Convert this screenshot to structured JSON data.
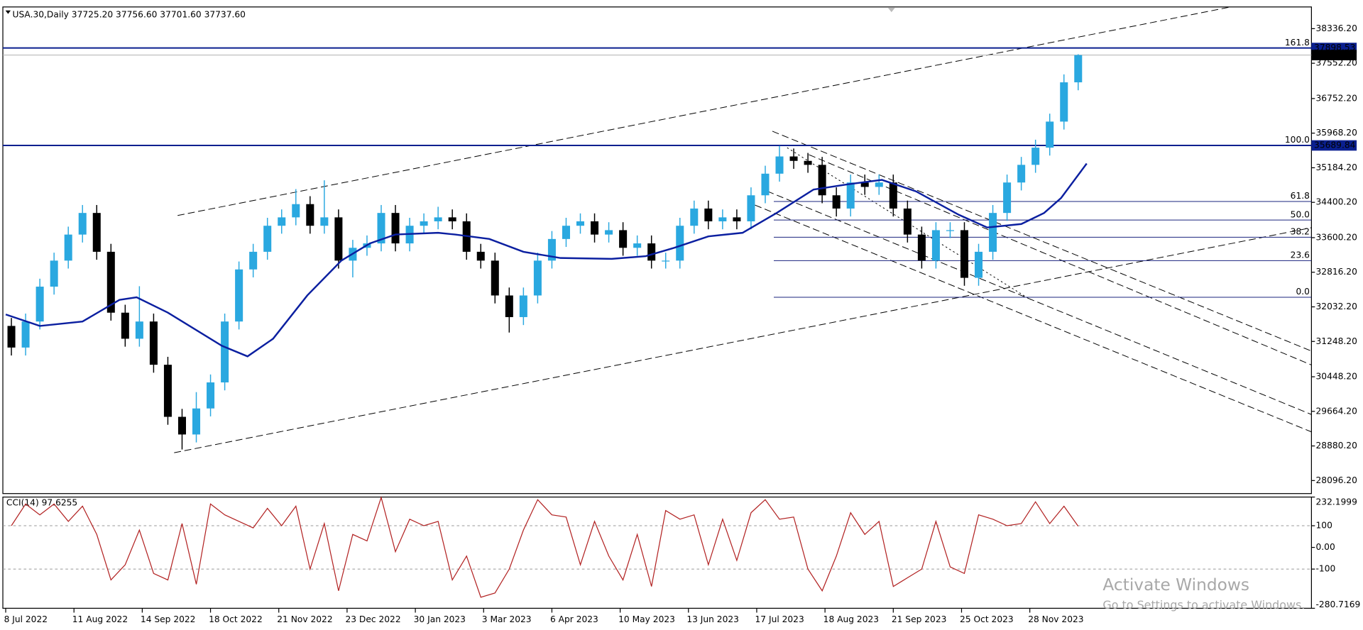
{
  "chart_data": [
    {
      "type": "candlestick",
      "title": "USA.30,Daily 37725.20 37756.60 37701.60 37737.60",
      "up_color": "#2aa8e0",
      "down_color": "#000000",
      "x": [
        2,
        7,
        12,
        17,
        22,
        27,
        32,
        37,
        42,
        47,
        52,
        57,
        62,
        67,
        72,
        77,
        82,
        87,
        92,
        97,
        102,
        107,
        112,
        117,
        122,
        127,
        132,
        137,
        142,
        147,
        152,
        157,
        162,
        167,
        172,
        177,
        182,
        187,
        192,
        197,
        202,
        207,
        212,
        217,
        222,
        227,
        232,
        237,
        242,
        247,
        252,
        257,
        262,
        267,
        272,
        277,
        282,
        287,
        292,
        297,
        302,
        307,
        312,
        317,
        322,
        327,
        332,
        337,
        342,
        347,
        352,
        357,
        362,
        367,
        372,
        377
      ],
      "open": [
        31600,
        31110,
        31700,
        32490,
        33080,
        33670,
        34160,
        33280,
        31900,
        31310,
        31700,
        30720,
        29540,
        29140,
        29730,
        30320,
        31700,
        32880,
        33280,
        33870,
        34060,
        34360,
        33870,
        34060,
        33080,
        33370,
        33470,
        34160,
        33470,
        33870,
        33970,
        34060,
        33970,
        33280,
        33080,
        32290,
        31800,
        32290,
        33080,
        33570,
        33870,
        33970,
        33670,
        33770,
        33370,
        33470,
        33080,
        33080,
        33870,
        34260,
        33970,
        34060,
        33970,
        34560,
        35050,
        35440,
        35340,
        35250,
        34560,
        34260,
        34850,
        34750,
        34850,
        34260,
        33670,
        33080,
        33770,
        33770,
        32690,
        33280,
        34160,
        34850,
        35250,
        35640,
        36230,
        37120
      ],
      "high": [
        31780,
        31880,
        32670,
        33260,
        33850,
        34340,
        34340,
        33460,
        32080,
        32500,
        31880,
        30900,
        29720,
        30100,
        30500,
        31880,
        33060,
        33460,
        34050,
        34240,
        34700,
        34540,
        34900,
        34240,
        33550,
        33650,
        34340,
        34340,
        34050,
        34150,
        34300,
        34240,
        34150,
        33460,
        33260,
        32470,
        32470,
        33260,
        33750,
        34050,
        34150,
        34150,
        33950,
        33950,
        33650,
        33650,
        33260,
        34050,
        34440,
        34440,
        34240,
        34240,
        34740,
        35230,
        35680,
        35620,
        35520,
        35430,
        34740,
        35030,
        35030,
        35030,
        35030,
        34440,
        33850,
        33950,
        33950,
        33950,
        33460,
        34340,
        35030,
        35430,
        35820,
        36410,
        37300,
        37756.6
      ],
      "low": [
        30930,
        30930,
        31520,
        32310,
        32900,
        33490,
        33100,
        31720,
        31130,
        31130,
        30540,
        29360,
        28800,
        28960,
        29550,
        30140,
        31520,
        32700,
        33100,
        33690,
        33880,
        33690,
        33690,
        32900,
        32700,
        33190,
        33290,
        33290,
        33290,
        33690,
        33790,
        33790,
        33100,
        32900,
        32110,
        31450,
        31620,
        32110,
        32900,
        33390,
        33690,
        33490,
        33490,
        33190,
        33190,
        32900,
        32900,
        32900,
        33690,
        33790,
        33790,
        33790,
        33790,
        34380,
        34870,
        35160,
        35070,
        34380,
        34080,
        34080,
        34570,
        34570,
        34080,
        33490,
        32900,
        32900,
        33590,
        32510,
        32510,
        33100,
        33980,
        34670,
        35070,
        35460,
        36050,
        36940
      ],
      "close": [
        31110,
        31700,
        32490,
        33080,
        33670,
        34160,
        33280,
        31900,
        31310,
        31700,
        30720,
        29540,
        29140,
        29730,
        30320,
        31700,
        32880,
        33280,
        33870,
        34060,
        34360,
        33870,
        34060,
        33080,
        33370,
        33470,
        34160,
        33470,
        33870,
        33970,
        34060,
        33970,
        33280,
        33080,
        32290,
        31800,
        32290,
        33080,
        33570,
        33870,
        33970,
        33670,
        33770,
        33370,
        33470,
        33080,
        33080,
        33870,
        34260,
        33970,
        34060,
        33970,
        34560,
        35050,
        35440,
        35340,
        35250,
        34560,
        34260,
        34850,
        34750,
        34850,
        34260,
        33670,
        33080,
        33770,
        33770,
        32690,
        33280,
        34160,
        34850,
        35250,
        35640,
        36230,
        37120,
        37737.6
      ],
      "moving_average": {
        "color": "#0b1fa0",
        "x": [
          0,
          12,
          27,
          40,
          46,
          57,
          76,
          85,
          94,
          106,
          118,
          128,
          137,
          152,
          158,
          170,
          182,
          195,
          213,
          225,
          235,
          247,
          259,
          271,
          284,
          296,
          308,
          320,
          335,
          345,
          357,
          365,
          371,
          380
        ],
        "values": [
          31860,
          31600,
          31700,
          32190,
          32250,
          31900,
          31150,
          30910,
          31310,
          32290,
          33080,
          33470,
          33670,
          33710,
          33670,
          33570,
          33280,
          33140,
          33120,
          33180,
          33370,
          33630,
          33710,
          34160,
          34690,
          34810,
          34910,
          34650,
          34120,
          33830,
          33910,
          34160,
          34500,
          35280
        ]
      },
      "xlim": [
        -1,
        459
      ],
      "xticks": [
        {
          "value": 0,
          "label": "8 Jul 2022"
        },
        {
          "value": 24,
          "label": "11 Aug 2022"
        },
        {
          "value": 48,
          "label": "14 Sep 2022"
        },
        {
          "value": 72,
          "label": "18 Oct 2022"
        },
        {
          "value": 96,
          "label": "21 Nov 2022"
        },
        {
          "value": 120,
          "label": "23 Dec 2022"
        },
        {
          "value": 144,
          "label": "30 Jan 2023"
        },
        {
          "value": 168,
          "label": "3 Mar 2023"
        },
        {
          "value": 192,
          "label": "6 Apr 2023"
        },
        {
          "value": 216,
          "label": "10 May 2023"
        },
        {
          "value": 240,
          "label": "13 Jun 2023"
        },
        {
          "value": 264,
          "label": "17 Jul 2023"
        },
        {
          "value": 288,
          "label": "18 Aug 2023"
        },
        {
          "value": 312,
          "label": "21 Sep 2023"
        },
        {
          "value": 336,
          "label": "25 Oct 2023"
        },
        {
          "value": 360,
          "label": "28 Nov 2023"
        }
      ],
      "ylim": [
        27801,
        38828
      ],
      "yticks": [
        {
          "value": 38336.2,
          "label": "38336.20"
        },
        {
          "value": 37552.2,
          "label": "37552.20"
        },
        {
          "value": 36752.2,
          "label": "36752.20"
        },
        {
          "value": 35968.2,
          "label": "35968.20"
        },
        {
          "value": 35184.2,
          "label": "35184.20"
        },
        {
          "value": 34400.2,
          "label": "34400.20"
        },
        {
          "value": 33600.2,
          "label": "33600.20"
        },
        {
          "value": 32816.2,
          "label": "32816.20"
        },
        {
          "value": 32032.2,
          "label": "32032.20"
        },
        {
          "value": 31248.2,
          "label": "31248.20"
        },
        {
          "value": 30448.2,
          "label": "30448.20"
        },
        {
          "value": 29664.2,
          "label": "29664.20"
        },
        {
          "value": 28880.2,
          "label": "28880.20"
        },
        {
          "value": 28096.2,
          "label": "28096.20"
        }
      ],
      "price_lines": [
        37898.53,
        35689.84
      ],
      "last_price": {
        "value": 37737.6,
        "label": "37737.60"
      },
      "fib_start_x": 270,
      "fib_levels": [
        {
          "label": "161.8",
          "value": 37898.53
        },
        {
          "label": "100.0",
          "value": 35689.84
        },
        {
          "label": "61.8",
          "value": 34420
        },
        {
          "label": "50.0",
          "value": 34000
        },
        {
          "label": "38.2",
          "value": 33610
        },
        {
          "label": "23.6",
          "value": 33080
        },
        {
          "label": "0.0",
          "value": 32250
        }
      ]
    },
    {
      "type": "line",
      "title": "CCI(14) 97.6255",
      "color": "#b22222",
      "x": [
        2,
        7,
        12,
        17,
        22,
        27,
        32,
        37,
        42,
        47,
        52,
        57,
        62,
        67,
        72,
        77,
        82,
        87,
        92,
        97,
        102,
        107,
        112,
        117,
        122,
        127,
        132,
        137,
        142,
        147,
        152,
        157,
        162,
        167,
        172,
        177,
        182,
        187,
        192,
        197,
        202,
        207,
        212,
        217,
        222,
        227,
        232,
        237,
        242,
        247,
        252,
        257,
        262,
        267,
        272,
        277,
        282,
        287,
        292,
        297,
        302,
        307,
        312,
        317,
        322,
        327,
        332,
        337,
        342,
        347,
        352,
        357,
        362,
        367,
        372,
        377
      ],
      "values": [
        100,
        200,
        150,
        200,
        120,
        190,
        60,
        -150,
        -80,
        80,
        -120,
        -150,
        110,
        -170,
        200,
        150,
        120,
        90,
        180,
        100,
        190,
        -100,
        110,
        -200,
        60,
        30,
        230,
        -20,
        130,
        100,
        120,
        -150,
        -40,
        -230,
        -210,
        -100,
        80,
        220,
        150,
        140,
        -80,
        120,
        -40,
        -150,
        60,
        -180,
        170,
        130,
        150,
        -80,
        130,
        -60,
        160,
        220,
        130,
        140,
        -100,
        -200,
        -40,
        160,
        60,
        120,
        -180,
        -140,
        -100,
        120,
        -90,
        -120,
        150,
        130,
        100,
        110,
        210,
        110,
        190,
        97.6255
      ],
      "xlim": [
        -1,
        459
      ],
      "ylim": [
        -280.7169,
        232.1999
      ],
      "yticks": [
        232.1999,
        100,
        {
          "value": 0,
          "label": "0.00"
        },
        -100,
        -280.7169
      ],
      "level_lines": [
        100,
        -100
      ]
    }
  ],
  "watermark": {
    "title": "Activate Windows",
    "subtitle": "Go to Settings to activate Windows."
  }
}
